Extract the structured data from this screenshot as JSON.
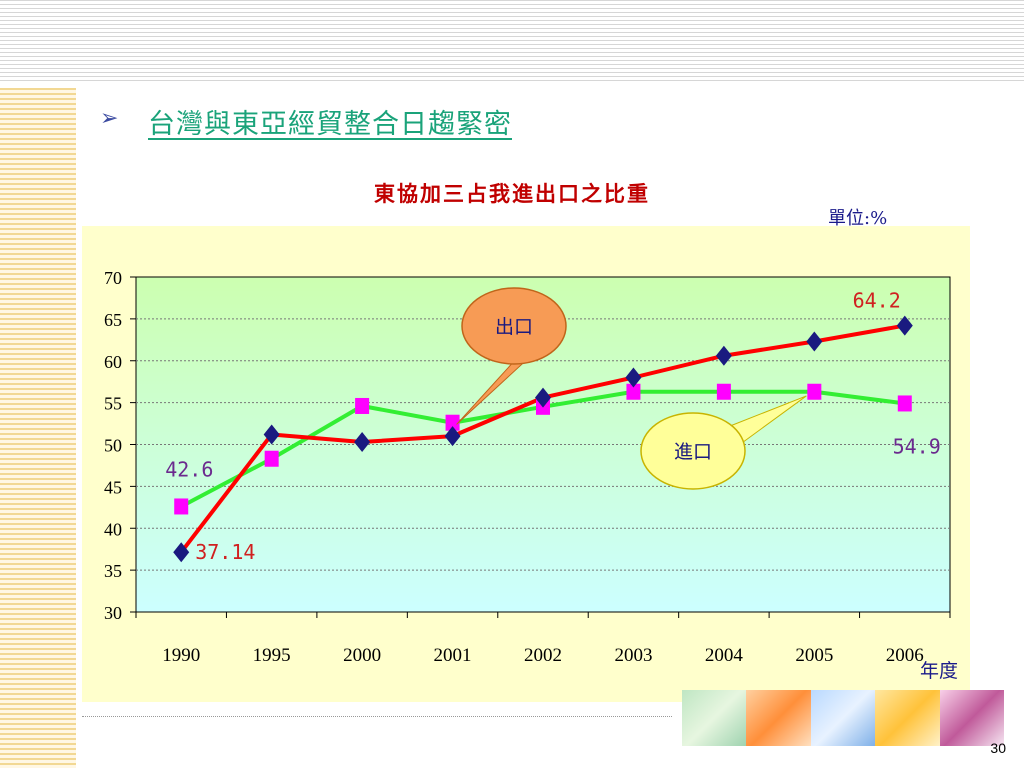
{
  "slide": {
    "title": "台灣與東亞經貿整合日趨緊密",
    "page_number": "30"
  },
  "chart_data": {
    "type": "line",
    "title": "東協加三占我進出口之比重",
    "unit": "單位:%",
    "xlabel": "年度",
    "categories": [
      "1990",
      "1995",
      "2000",
      "2001",
      "2002",
      "2003",
      "2004",
      "2005",
      "2006"
    ],
    "ylim": [
      30,
      70
    ],
    "yticks": [
      30,
      35,
      40,
      45,
      50,
      55,
      60,
      65,
      70
    ],
    "grid": true,
    "series": [
      {
        "name": "出口",
        "color": "#ff0000",
        "marker": "diamond",
        "marker_color": "#1a1a80",
        "values": [
          37.14,
          51.2,
          50.3,
          51.0,
          55.6,
          58.0,
          60.6,
          62.3,
          64.2
        ]
      },
      {
        "name": "進口",
        "color": "#33ee33",
        "marker": "square",
        "marker_color": "#ff00ff",
        "values": [
          42.6,
          48.3,
          54.6,
          52.6,
          54.5,
          56.3,
          56.3,
          56.3,
          54.9
        ]
      }
    ],
    "data_labels": [
      {
        "text": "64.2",
        "series": 0,
        "index": 8,
        "color": "#d02020"
      },
      {
        "text": "37.14",
        "series": 0,
        "index": 0,
        "color": "#d02020"
      },
      {
        "text": "42.6",
        "series": 1,
        "index": 0,
        "color": "#6b2a8e"
      },
      {
        "text": "54.9",
        "series": 1,
        "index": 8,
        "color": "#6b2a8e"
      }
    ]
  }
}
